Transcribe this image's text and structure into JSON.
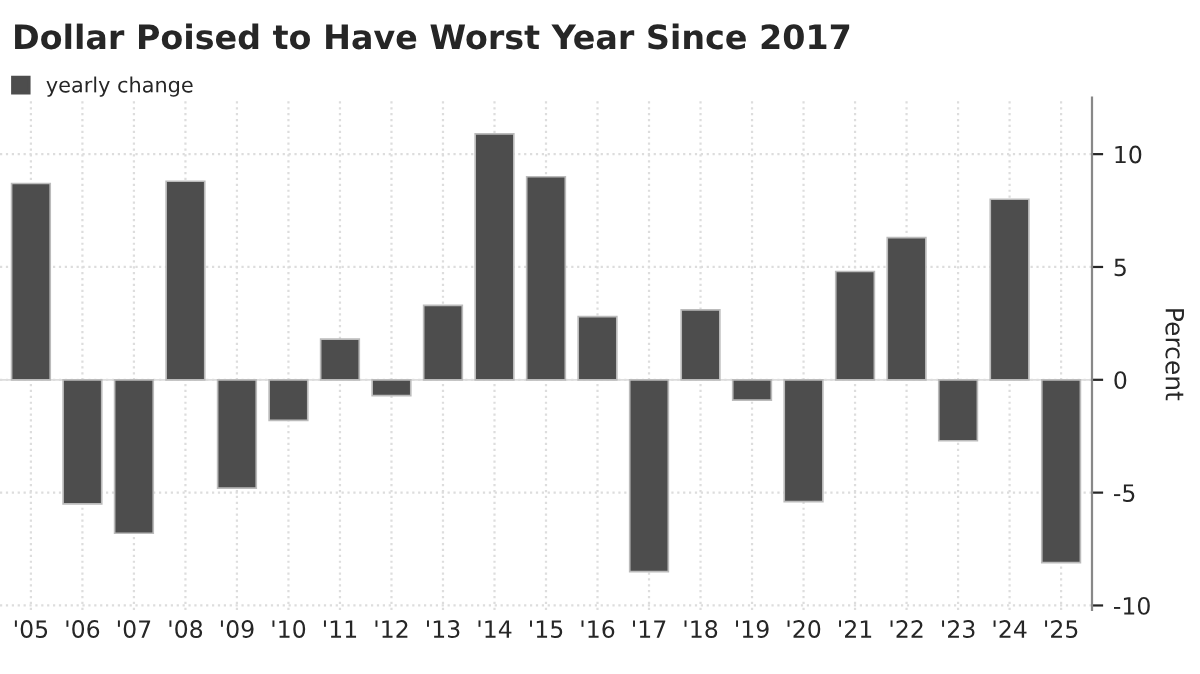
{
  "chart_data": {
    "type": "bar",
    "title": "Dollar Poised to Have Worst Year Since 2017",
    "ylabel": "Percent",
    "categories": [
      "'05",
      "'06",
      "'07",
      "'08",
      "'09",
      "'10",
      "'11",
      "'12",
      "'13",
      "'14",
      "'15",
      "'16",
      "'17",
      "'18",
      "'19",
      "'20",
      "'21",
      "'22",
      "'23",
      "'24",
      "'25"
    ],
    "series": [
      {
        "name": "yearly change",
        "color": "#4d4d4d",
        "values": [
          8.7,
          -5.5,
          -6.8,
          8.8,
          -4.8,
          -1.8,
          1.8,
          -0.7,
          3.3,
          10.9,
          9.0,
          2.8,
          -8.5,
          3.1,
          -0.9,
          -5.4,
          4.8,
          6.3,
          -2.7,
          8.0,
          -8.1
        ]
      }
    ],
    "ylim": [
      -10.2,
      12.5
    ],
    "yticks": [
      -10,
      -5,
      0,
      5,
      10
    ],
    "grid": true,
    "legend": "top left"
  }
}
